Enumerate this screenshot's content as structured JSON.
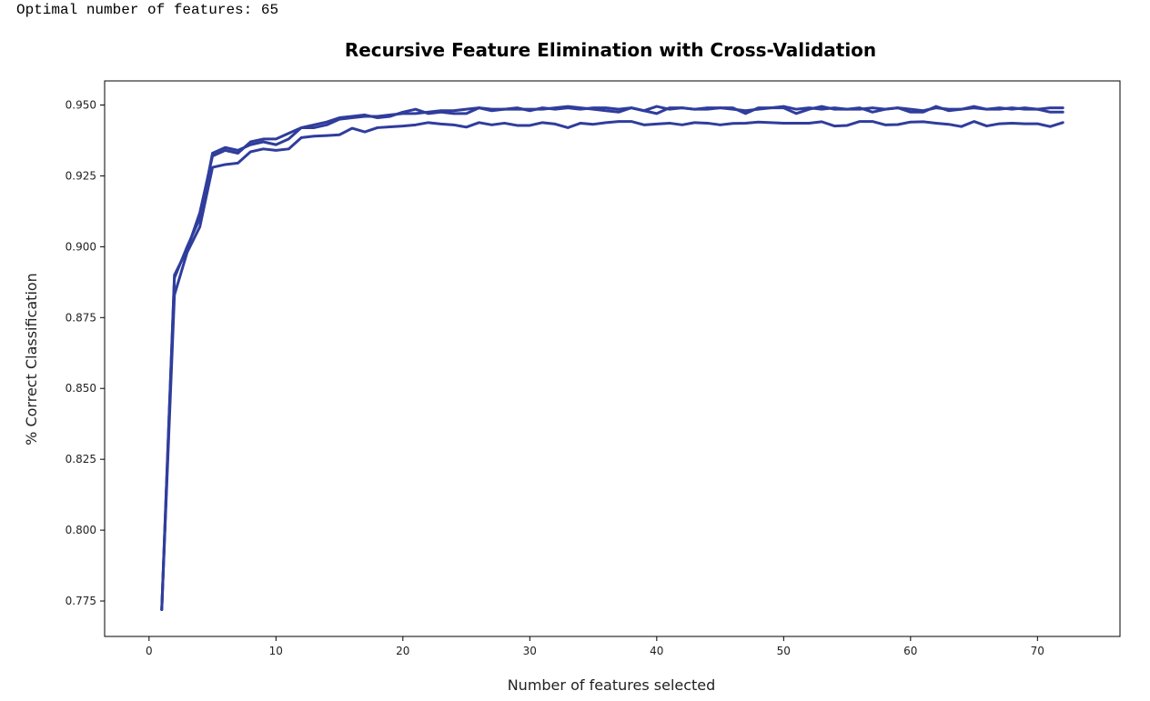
{
  "console": {
    "output_text": "Optimal number of features: 65"
  },
  "chart_data": {
    "type": "line",
    "title": "Recursive Feature Elimination with Cross-Validation",
    "xlabel": "Number of features selected",
    "ylabel": "% Correct Classification",
    "xlim": [
      -3.5,
      76.5
    ],
    "ylim": [
      0.7625,
      0.9585
    ],
    "xticks": [
      0,
      10,
      20,
      30,
      40,
      50,
      60,
      70
    ],
    "yticks": [
      0.775,
      0.8,
      0.825,
      0.85,
      0.875,
      0.9,
      0.925,
      0.95
    ],
    "ytick_labels": [
      "0.775",
      "0.800",
      "0.825",
      "0.850",
      "0.875",
      "0.900",
      "0.925",
      "0.950"
    ],
    "grid": false,
    "line_color": "#2f3d9c",
    "x": [
      1,
      2,
      3,
      4,
      5,
      6,
      7,
      8,
      9,
      10,
      11,
      12,
      13,
      14,
      15,
      16,
      17,
      18,
      19,
      20,
      21,
      22,
      23,
      24,
      25,
      26,
      27,
      28,
      29,
      30,
      31,
      32,
      33,
      34,
      35,
      36,
      37,
      38,
      39,
      40,
      41,
      42,
      43,
      44,
      45,
      46,
      47,
      48,
      49,
      50,
      51,
      52,
      53,
      54,
      55,
      56,
      57,
      58,
      59,
      60,
      61,
      62,
      63,
      64,
      65,
      66,
      67,
      68,
      69,
      70,
      71,
      72
    ],
    "series": [
      {
        "values": [
          0.772,
          0.89,
          0.899,
          0.912,
          0.932,
          0.934,
          0.933,
          0.937,
          0.938,
          0.938,
          0.94,
          0.942,
          0.942,
          0.943,
          0.945,
          0.9455,
          0.946,
          0.946,
          0.9465,
          0.947,
          0.947,
          0.9475,
          0.948,
          0.948,
          0.9485,
          0.949,
          0.9485,
          0.9485,
          0.949,
          0.948,
          0.949,
          0.9485,
          0.949,
          0.9485,
          0.949,
          0.949,
          0.9485,
          0.949,
          0.948,
          0.9495,
          0.9485,
          0.949,
          0.9485,
          0.949,
          0.949,
          0.9485,
          0.948,
          0.9485,
          0.949,
          0.9495,
          0.9485,
          0.949,
          0.9485,
          0.949,
          0.9485,
          0.9485,
          0.949,
          0.9485,
          0.949,
          0.9485,
          0.948,
          0.949,
          0.9485,
          0.9485,
          0.9495,
          0.9485,
          0.9485,
          0.949,
          0.9485,
          0.9485,
          0.9475,
          0.9475
        ]
      },
      {
        "values": [
          0.772,
          0.889,
          0.9,
          0.91,
          0.933,
          0.935,
          0.934,
          0.936,
          0.937,
          0.936,
          0.938,
          0.942,
          0.943,
          0.944,
          0.9455,
          0.946,
          0.9465,
          0.9455,
          0.946,
          0.9475,
          0.9485,
          0.947,
          0.9475,
          0.947,
          0.947,
          0.949,
          0.948,
          0.9485,
          0.9485,
          0.9485,
          0.9485,
          0.949,
          0.9495,
          0.949,
          0.9485,
          0.948,
          0.9475,
          0.949,
          0.948,
          0.947,
          0.949,
          0.949,
          0.9485,
          0.9485,
          0.949,
          0.949,
          0.947,
          0.949,
          0.949,
          0.949,
          0.947,
          0.9485,
          0.9495,
          0.9485,
          0.9485,
          0.949,
          0.9475,
          0.9485,
          0.949,
          0.9475,
          0.9475,
          0.9495,
          0.948,
          0.9485,
          0.949,
          0.9485,
          0.949,
          0.9485,
          0.949,
          0.9485,
          0.949,
          0.949
        ]
      },
      {
        "values": [
          0.772,
          0.883,
          0.898,
          0.907,
          0.928,
          0.929,
          0.9295,
          0.9335,
          0.9345,
          0.934,
          0.9345,
          0.9385,
          0.939,
          0.9392,
          0.9395,
          0.9418,
          0.9405,
          0.942,
          0.9423,
          0.9426,
          0.943,
          0.9438,
          0.9433,
          0.943,
          0.9422,
          0.9438,
          0.943,
          0.9436,
          0.9428,
          0.9428,
          0.9438,
          0.9433,
          0.942,
          0.9436,
          0.9432,
          0.9438,
          0.9442,
          0.9442,
          0.943,
          0.9433,
          0.9436,
          0.943,
          0.9438,
          0.9436,
          0.943,
          0.9435,
          0.9436,
          0.944,
          0.9438,
          0.9436,
          0.9436,
          0.9436,
          0.9441,
          0.9426,
          0.9428,
          0.9442,
          0.9442,
          0.943,
          0.9431,
          0.944,
          0.9441,
          0.9436,
          0.9432,
          0.9424,
          0.9442,
          0.9426,
          0.9434,
          0.9436,
          0.9434,
          0.9434,
          0.9424,
          0.9438
        ]
      }
    ]
  }
}
